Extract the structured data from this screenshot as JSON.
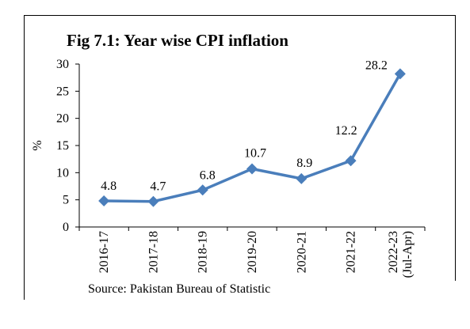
{
  "figure": {
    "title": "Fig 7.1: Year wise CPI inflation",
    "source": "Source: Pakistan Bureau of Statistic"
  },
  "chart_data": {
    "type": "line",
    "title": "Fig 7.1: Year wise CPI inflation",
    "xlabel": "",
    "ylabel": "%",
    "ylim": [
      0,
      30
    ],
    "yticks": [
      0,
      5,
      10,
      15,
      20,
      25,
      30
    ],
    "categories": [
      "2016-17",
      "2017-18",
      "2018-19",
      "2019-20",
      "2020-21",
      "2021-22",
      "2022-23 (Jul-Apr)"
    ],
    "category_lines": [
      [
        "2016-17"
      ],
      [
        "2017-18"
      ],
      [
        "2018-19"
      ],
      [
        "2019-20"
      ],
      [
        "2020-21"
      ],
      [
        "2021-22"
      ],
      [
        "2022-23",
        "(Jul-Apr)"
      ]
    ],
    "series": [
      {
        "values": [
          4.8,
          4.7,
          6.8,
          10.7,
          8.9,
          12.2,
          28.2
        ],
        "color": "#4a7ebb",
        "marker": "diamond"
      }
    ],
    "data_labels": [
      "4.8",
      "4.7",
      "6.8",
      "10.7",
      "8.9",
      "12.2",
      "28.2"
    ],
    "grid": false,
    "legend": "none"
  }
}
